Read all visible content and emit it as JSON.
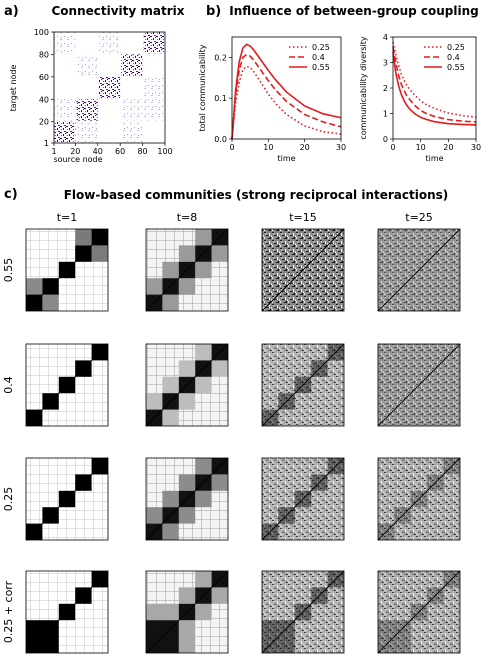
{
  "panel_a": {
    "letter": "a)",
    "title": "Connectivity matrix",
    "xlabel": "source node",
    "ylabel": "target node",
    "xticks": [
      "1",
      "20",
      "40",
      "60",
      "80",
      "100"
    ],
    "yticks": [
      "1",
      "20",
      "40",
      "60",
      "80",
      "100"
    ]
  },
  "panel_b": {
    "letter": "b)",
    "title": "Influence of between-group coupling"
  },
  "panel_c": {
    "letter": "c)",
    "title": "Flow-based communities (strong reciprocal interactions)",
    "columns": [
      "t=1",
      "t=8",
      "t=15",
      "t=25"
    ],
    "rows": [
      "0.55",
      "0.4",
      "0.25",
      "0.25 + corr"
    ]
  },
  "colors": {
    "red": "#e41a1c",
    "purple": "#3f007d",
    "light_purple": "#9e9ac8"
  },
  "chart_data": [
    {
      "type": "heatmap",
      "title": "Connectivity matrix",
      "xlabel": "source node",
      "ylabel": "target node",
      "xlim": [
        1,
        100
      ],
      "ylim": [
        1,
        100
      ],
      "groups": [
        [
          1,
          20
        ],
        [
          21,
          40
        ],
        [
          41,
          60
        ],
        [
          61,
          80
        ],
        [
          81,
          100
        ]
      ],
      "note_colors": {
        "within_group": "#3f007d",
        "between_group": "#9e9ac8"
      }
    },
    {
      "type": "line",
      "xlabel": "time",
      "ylabel": "total communicability",
      "xlim": [
        0,
        30
      ],
      "ylim": [
        0,
        0.25
      ],
      "xticks": [
        "0",
        "10",
        "20",
        "30"
      ],
      "yticks": [
        "0.0",
        "0.1",
        "0.2"
      ],
      "legend": "top-right",
      "series": [
        {
          "name": "0.25",
          "style": "dotted",
          "x": [
            0,
            1,
            2,
            3,
            4,
            5,
            6,
            8,
            10,
            12,
            15,
            20,
            25,
            30
          ],
          "y": [
            0.0,
            0.09,
            0.14,
            0.17,
            0.178,
            0.175,
            0.165,
            0.138,
            0.11,
            0.087,
            0.06,
            0.032,
            0.018,
            0.012
          ]
        },
        {
          "name": "0.4",
          "style": "dashed",
          "x": [
            0,
            1,
            2,
            3,
            4,
            5,
            6,
            8,
            10,
            12,
            15,
            20,
            25,
            30
          ],
          "y": [
            0.0,
            0.11,
            0.17,
            0.2,
            0.207,
            0.203,
            0.193,
            0.168,
            0.143,
            0.12,
            0.092,
            0.06,
            0.042,
            0.03
          ]
        },
        {
          "name": "0.55",
          "style": "solid",
          "x": [
            0,
            1,
            2,
            3,
            4,
            5,
            6,
            8,
            10,
            12,
            15,
            20,
            25,
            30
          ],
          "y": [
            0.0,
            0.12,
            0.19,
            0.223,
            0.232,
            0.228,
            0.218,
            0.193,
            0.168,
            0.145,
            0.115,
            0.081,
            0.062,
            0.052
          ]
        }
      ]
    },
    {
      "type": "line",
      "xlabel": "time",
      "ylabel": "communicability diversity",
      "xlim": [
        0,
        30
      ],
      "ylim": [
        0,
        4
      ],
      "xticks": [
        "0",
        "10",
        "20",
        "30"
      ],
      "yticks": [
        "0",
        "1",
        "2",
        "3",
        "4"
      ],
      "legend": "top-right",
      "series": [
        {
          "name": "0.25",
          "style": "dotted",
          "x": [
            0,
            1,
            2,
            3,
            4,
            5,
            6,
            8,
            10,
            12,
            15,
            20,
            25,
            30
          ],
          "y": [
            3.8,
            3.3,
            2.9,
            2.55,
            2.3,
            2.1,
            1.95,
            1.7,
            1.5,
            1.35,
            1.2,
            1.02,
            0.92,
            0.85
          ]
        },
        {
          "name": "0.4",
          "style": "dashed",
          "x": [
            0,
            1,
            2,
            3,
            4,
            5,
            6,
            8,
            10,
            12,
            15,
            20,
            25,
            30
          ],
          "y": [
            3.6,
            3.0,
            2.5,
            2.15,
            1.9,
            1.7,
            1.55,
            1.3,
            1.12,
            1.0,
            0.88,
            0.76,
            0.7,
            0.67
          ]
        },
        {
          "name": "0.55",
          "style": "solid",
          "x": [
            0,
            1,
            2,
            3,
            4,
            5,
            6,
            8,
            10,
            12,
            15,
            20,
            25,
            30
          ],
          "y": [
            3.4,
            2.6,
            2.1,
            1.75,
            1.5,
            1.32,
            1.18,
            0.98,
            0.85,
            0.77,
            0.68,
            0.6,
            0.57,
            0.55
          ]
        }
      ]
    },
    {
      "type": "heatmap",
      "title": "Flow-based communities (strong reciprocal interactions)",
      "columns": [
        "t=1",
        "t=8",
        "t=15",
        "t=25"
      ],
      "rows": [
        "0.55",
        "0.4",
        "0.25",
        "0.25 + corr"
      ]
    }
  ]
}
